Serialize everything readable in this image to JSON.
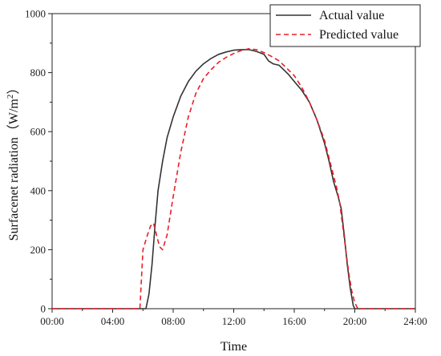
{
  "chart_data": {
    "type": "line",
    "xlabel": "Time",
    "ylabel_main": "Surfacenet radiation（W/m",
    "ylabel_sup": "2",
    "ylabel_end": "）",
    "xlim": [
      0,
      24
    ],
    "ylim": [
      0,
      1000
    ],
    "x_ticks": [
      {
        "value": 0,
        "label": "00:00"
      },
      {
        "value": 4,
        "label": "04:00"
      },
      {
        "value": 8,
        "label": "08:00"
      },
      {
        "value": 12,
        "label": "12:00"
      },
      {
        "value": 16,
        "label": "16:00"
      },
      {
        "value": 20,
        "label": "20:00"
      },
      {
        "value": 24,
        "label": "24:00"
      }
    ],
    "y_ticks": [
      {
        "value": 0,
        "label": "0"
      },
      {
        "value": 200,
        "label": "200"
      },
      {
        "value": 400,
        "label": "400"
      },
      {
        "value": 600,
        "label": "600"
      },
      {
        "value": 800,
        "label": "800"
      },
      {
        "value": 1000,
        "label": "1000"
      }
    ],
    "legend_position": "top-right",
    "series": [
      {
        "name": "Actual value",
        "color": "#333333",
        "dash": "solid",
        "points": [
          [
            0,
            0
          ],
          [
            6.2,
            0
          ],
          [
            6.4,
            50
          ],
          [
            6.6,
            150
          ],
          [
            6.8,
            280
          ],
          [
            7.0,
            400
          ],
          [
            7.3,
            500
          ],
          [
            7.6,
            580
          ],
          [
            8.0,
            650
          ],
          [
            8.5,
            720
          ],
          [
            9.0,
            770
          ],
          [
            9.5,
            805
          ],
          [
            10.0,
            830
          ],
          [
            10.5,
            848
          ],
          [
            11.0,
            862
          ],
          [
            11.5,
            870
          ],
          [
            12.0,
            876
          ],
          [
            12.5,
            878
          ],
          [
            13.0,
            878
          ],
          [
            13.5,
            872
          ],
          [
            14.0,
            862
          ],
          [
            14.3,
            840
          ],
          [
            14.6,
            830
          ],
          [
            15.0,
            825
          ],
          [
            15.3,
            810
          ],
          [
            15.6,
            795
          ],
          [
            16.0,
            770
          ],
          [
            16.5,
            740
          ],
          [
            17.0,
            700
          ],
          [
            17.5,
            640
          ],
          [
            18.0,
            560
          ],
          [
            18.3,
            500
          ],
          [
            18.6,
            430
          ],
          [
            18.9,
            380
          ],
          [
            19.1,
            340
          ],
          [
            19.3,
            250
          ],
          [
            19.5,
            150
          ],
          [
            19.7,
            70
          ],
          [
            19.9,
            10
          ],
          [
            20.0,
            0
          ],
          [
            24,
            0
          ]
        ]
      },
      {
        "name": "Predicted value",
        "color": "#e8202a",
        "dash": "dashed",
        "points": [
          [
            0,
            0
          ],
          [
            5.8,
            0
          ],
          [
            5.9,
            100
          ],
          [
            6.0,
            200
          ],
          [
            6.3,
            250
          ],
          [
            6.5,
            280
          ],
          [
            6.7,
            290
          ],
          [
            6.9,
            250
          ],
          [
            7.1,
            210
          ],
          [
            7.3,
            200
          ],
          [
            7.6,
            250
          ],
          [
            8.0,
            380
          ],
          [
            8.5,
            530
          ],
          [
            9.0,
            650
          ],
          [
            9.5,
            730
          ],
          [
            10.0,
            780
          ],
          [
            10.5,
            810
          ],
          [
            11.0,
            835
          ],
          [
            11.5,
            852
          ],
          [
            12.0,
            865
          ],
          [
            12.5,
            875
          ],
          [
            13.0,
            881
          ],
          [
            13.5,
            878
          ],
          [
            14.0,
            868
          ],
          [
            14.5,
            855
          ],
          [
            15.0,
            840
          ],
          [
            15.5,
            815
          ],
          [
            16.0,
            790
          ],
          [
            16.5,
            750
          ],
          [
            17.0,
            700
          ],
          [
            17.5,
            640
          ],
          [
            18.0,
            570
          ],
          [
            18.5,
            470
          ],
          [
            18.8,
            410
          ],
          [
            19.0,
            360
          ],
          [
            19.2,
            280
          ],
          [
            19.4,
            200
          ],
          [
            19.6,
            120
          ],
          [
            19.8,
            60
          ],
          [
            20.0,
            20
          ],
          [
            20.2,
            0
          ],
          [
            24,
            0
          ]
        ]
      }
    ]
  }
}
